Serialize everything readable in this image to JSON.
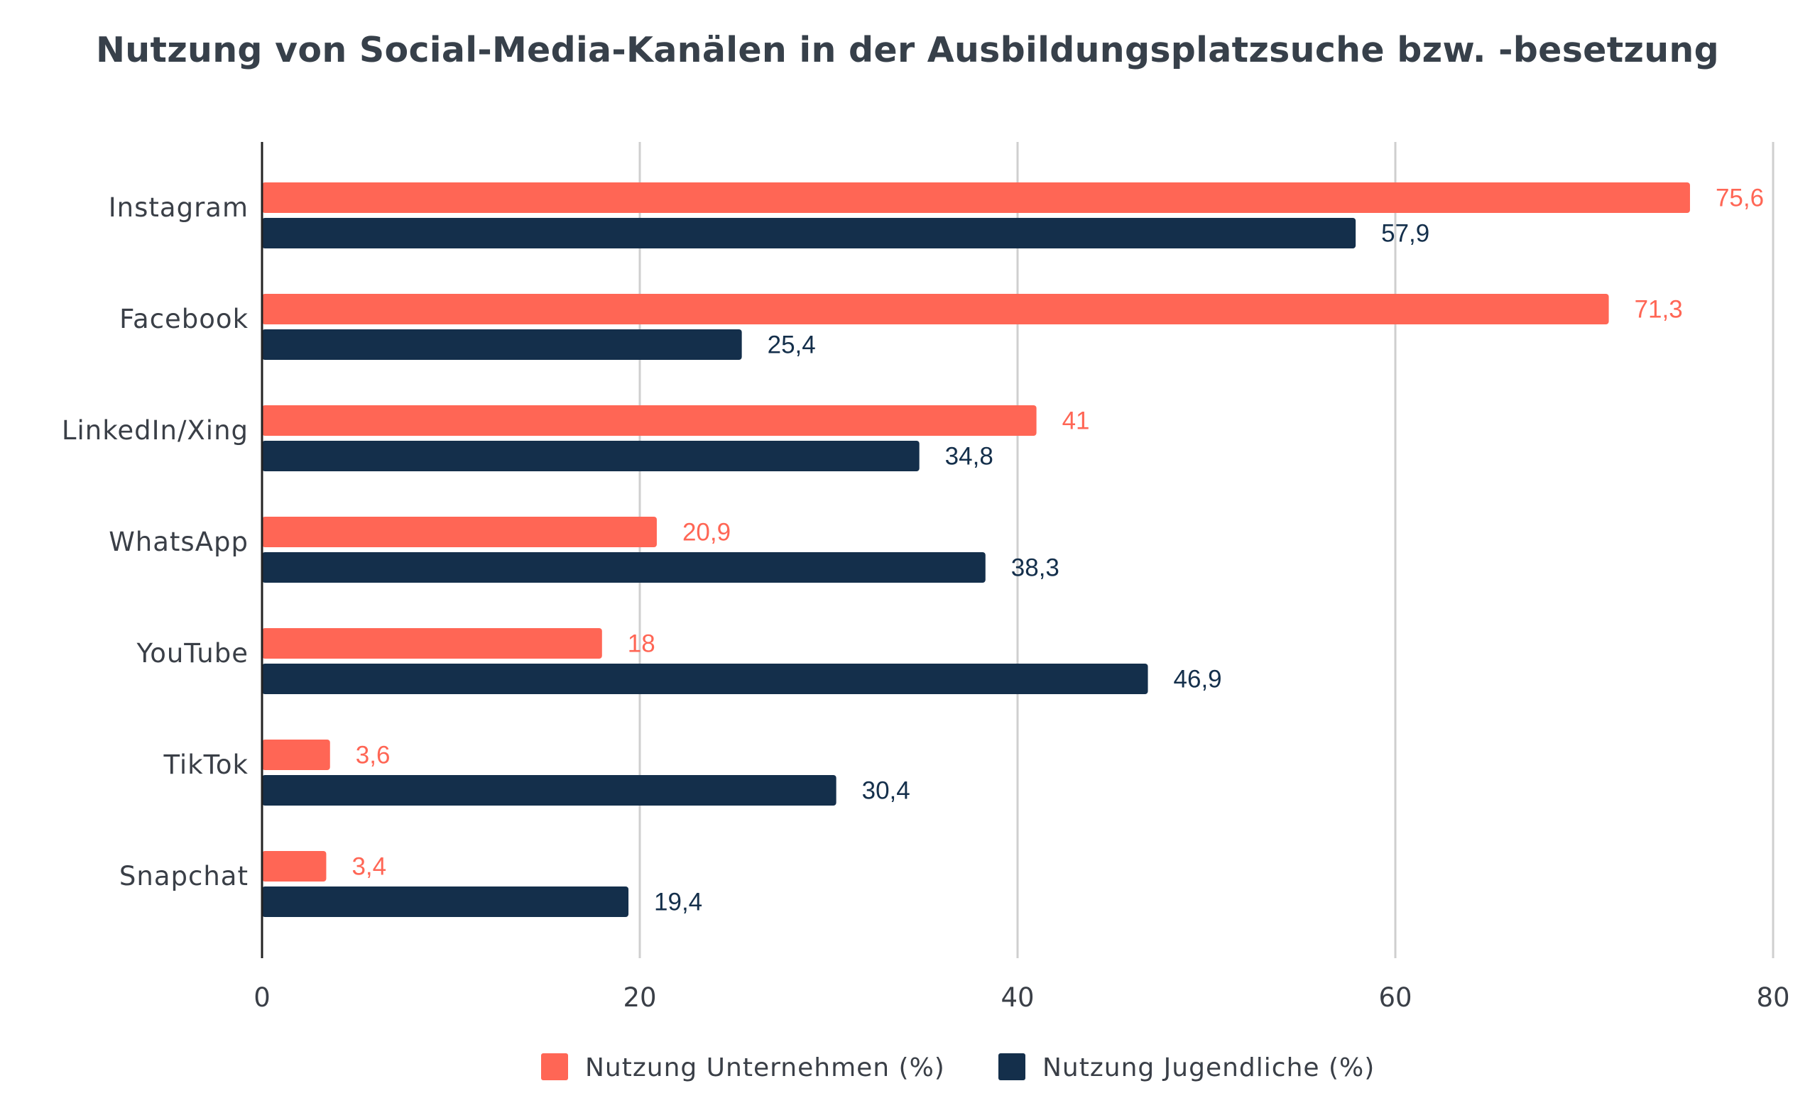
{
  "chart_data": {
    "type": "bar",
    "orientation": "horizontal",
    "title": "Nutzung von Social-Media-Kanälen in der Ausbildungsplatzsuche bzw. -besetzung",
    "categories": [
      "Instagram",
      "Facebook",
      "LinkedIn/Xing",
      "WhatsApp",
      "YouTube",
      "TikTok",
      "Snapchat"
    ],
    "series": [
      {
        "name": "Nutzung Unternehmen (%)",
        "color": "#ff6655",
        "values": [
          75.6,
          71.3,
          41,
          20.9,
          18,
          3.6,
          3.4
        ],
        "labels": [
          "75,6",
          "71,3",
          "41",
          "20,9",
          "18",
          "3,6",
          "3,4"
        ]
      },
      {
        "name": "Nutzung Jugendliche (%)",
        "color": "#142f4b",
        "values": [
          57.9,
          25.4,
          34.8,
          38.3,
          46.9,
          30.4,
          19.4
        ],
        "labels": [
          "57,9",
          "25,4",
          "34,8",
          "38,3",
          "46,9",
          "30,4",
          "19,4"
        ]
      }
    ],
    "xlim": [
      0,
      80
    ],
    "xticks": [
      0,
      20,
      40,
      60,
      80
    ],
    "xtick_labels": [
      "0",
      "20",
      "40",
      "60",
      "80"
    ],
    "xlabel": "",
    "ylabel": "",
    "grid": true,
    "legend_position": "bottom-center"
  }
}
